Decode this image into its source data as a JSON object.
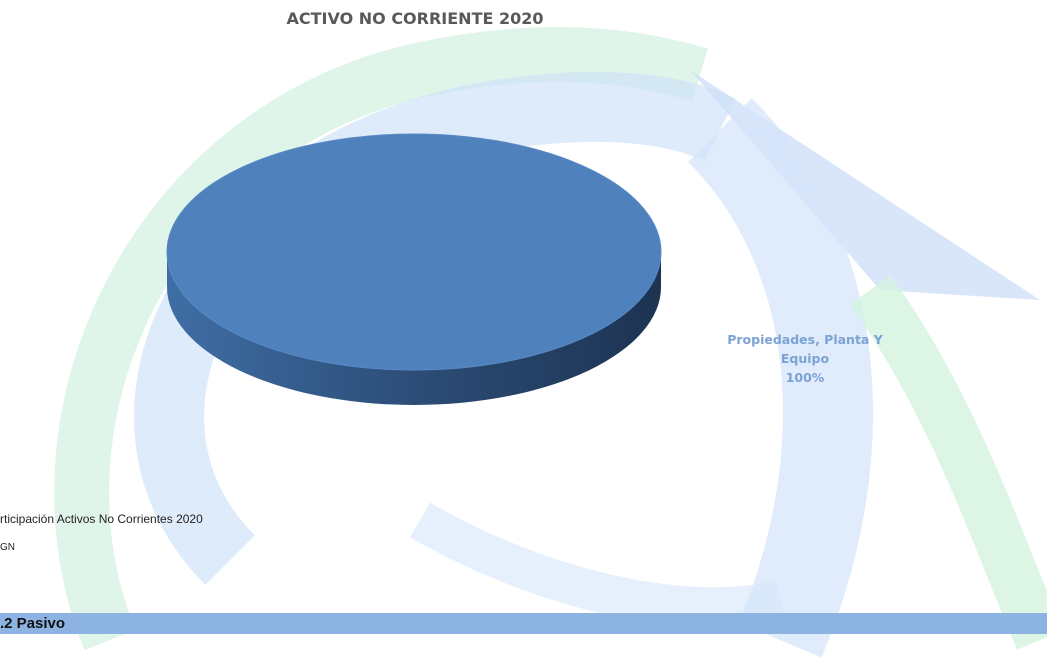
{
  "chart_data": {
    "type": "pie",
    "title": "ACTIVO NO CORRIENTE 2020",
    "categories": [
      "Propiedades, Planta Y Equipo"
    ],
    "values": [
      100
    ],
    "value_labels": [
      "100%"
    ],
    "colors": [
      "#4f81bd"
    ]
  },
  "caption": "rticipación Activos No Corrientes 2020",
  "source": "GN",
  "section_heading": ".2 Pasivo"
}
